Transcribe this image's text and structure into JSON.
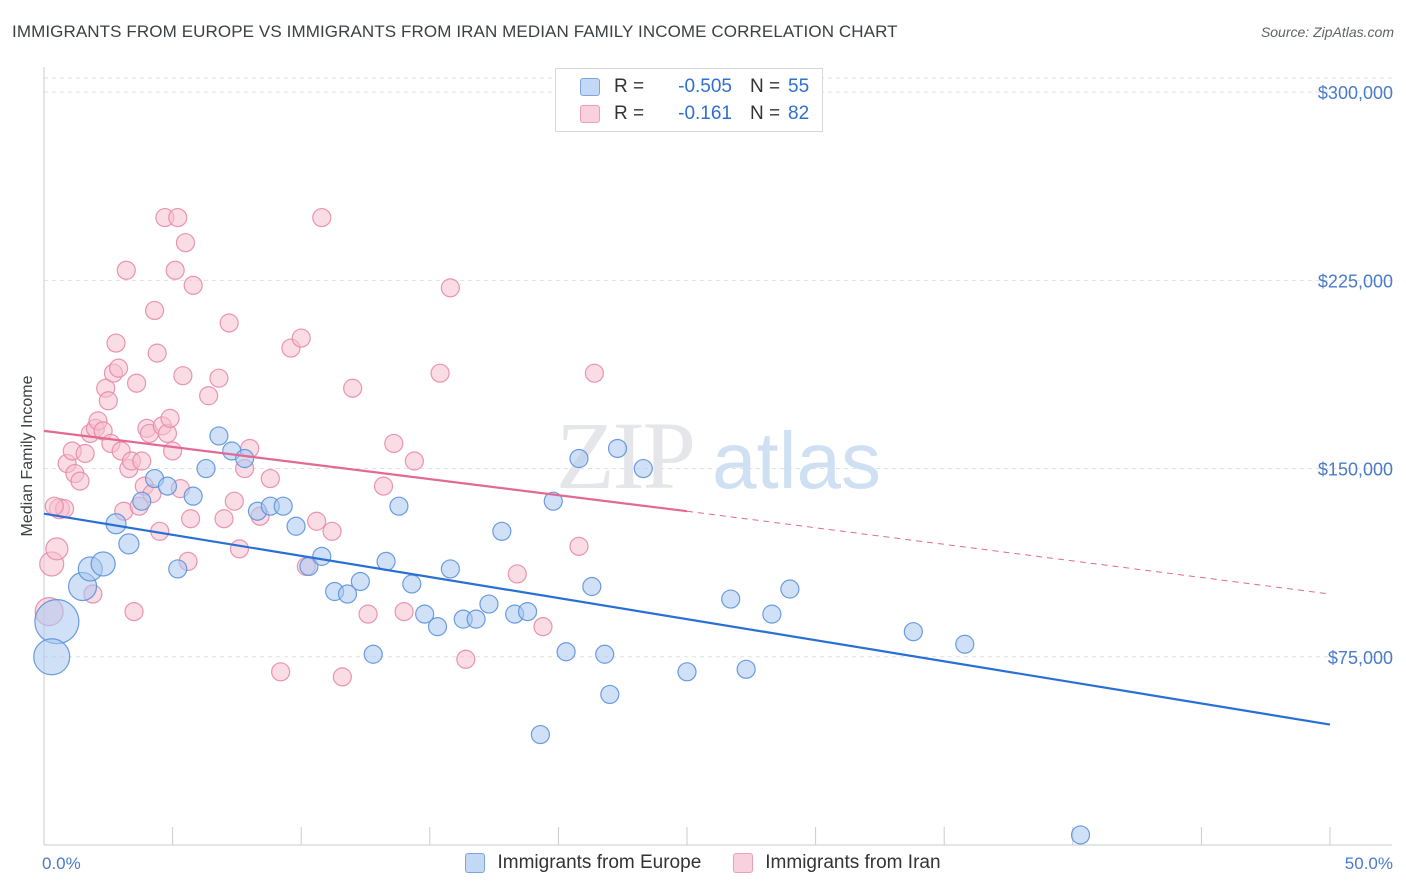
{
  "title": "IMMIGRANTS FROM EUROPE VS IMMIGRANTS FROM IRAN MEDIAN FAMILY INCOME CORRELATION CHART",
  "source": "Source: ZipAtlas.com",
  "watermark": {
    "zip": "ZIP",
    "atlas": "atlas"
  },
  "legend": {
    "europe": {
      "r_label": "R =",
      "r_value": "-0.505",
      "n_label": "N =",
      "n_value": "55"
    },
    "iran": {
      "r_label": "R =",
      "r_value": "-0.161",
      "n_label": "N =",
      "n_value": "82"
    }
  },
  "colors": {
    "europe_fill": "#a9c8f0",
    "europe_stroke": "#5b92dc",
    "europe_line": "#2a6fd4",
    "iran_fill": "#f6bfd0",
    "iran_stroke": "#e889a8",
    "iran_line": "#e26a92",
    "grid": "#dfe1e5",
    "axis_text": "#4a7bc8"
  },
  "chart_data": {
    "type": "scatter",
    "title": "IMMIGRANTS FROM EUROPE VS IMMIGRANTS FROM IRAN MEDIAN FAMILY INCOME CORRELATION CHART",
    "xlabel": "",
    "ylabel": "Median Family Income",
    "xlim": [
      0,
      50
    ],
    "ylim": [
      0,
      310000
    ],
    "x_tick_labels": [
      "0.0%",
      "50.0%"
    ],
    "y_ticks": [
      75000,
      150000,
      225000,
      300000
    ],
    "y_tick_labels": [
      "$75,000",
      "$150,000",
      "$225,000",
      "$300,000"
    ],
    "grid": true,
    "series": [
      {
        "name": "Immigrants from Europe",
        "points": [
          [
            0.5,
            89000,
            22
          ],
          [
            0.3,
            75000,
            18
          ],
          [
            1.5,
            103000,
            14
          ],
          [
            1.8,
            110000,
            12
          ],
          [
            2.3,
            112000,
            12
          ],
          [
            2.8,
            128000,
            10
          ],
          [
            3.3,
            120000,
            10
          ],
          [
            3.8,
            137000,
            9
          ],
          [
            4.3,
            146000,
            9
          ],
          [
            4.8,
            143000,
            9
          ],
          [
            5.2,
            110000,
            9
          ],
          [
            5.8,
            139000,
            9
          ],
          [
            6.3,
            150000,
            9
          ],
          [
            6.8,
            163000,
            9
          ],
          [
            7.3,
            157000,
            9
          ],
          [
            7.8,
            154000,
            9
          ],
          [
            8.3,
            133000,
            9
          ],
          [
            8.8,
            135000,
            9
          ],
          [
            9.3,
            135000,
            9
          ],
          [
            9.8,
            127000,
            9
          ],
          [
            10.3,
            111000,
            9
          ],
          [
            10.8,
            115000,
            9
          ],
          [
            11.3,
            101000,
            9
          ],
          [
            11.8,
            100000,
            9
          ],
          [
            12.3,
            105000,
            9
          ],
          [
            12.8,
            76000,
            9
          ],
          [
            13.3,
            113000,
            9
          ],
          [
            13.8,
            135000,
            9
          ],
          [
            14.3,
            104000,
            9
          ],
          [
            14.8,
            92000,
            9
          ],
          [
            15.3,
            87000,
            9
          ],
          [
            15.8,
            110000,
            9
          ],
          [
            16.3,
            90000,
            9
          ],
          [
            16.8,
            90000,
            9
          ],
          [
            17.3,
            96000,
            9
          ],
          [
            17.8,
            125000,
            9
          ],
          [
            18.3,
            92000,
            9
          ],
          [
            18.8,
            93000,
            9
          ],
          [
            19.3,
            44000,
            9
          ],
          [
            19.8,
            137000,
            9
          ],
          [
            20.3,
            77000,
            9
          ],
          [
            20.8,
            154000,
            9
          ],
          [
            21.3,
            103000,
            9
          ],
          [
            21.8,
            76000,
            9
          ],
          [
            22.0,
            60000,
            9
          ],
          [
            22.3,
            158000,
            9
          ],
          [
            23.3,
            150000,
            9
          ],
          [
            25.0,
            69000,
            9
          ],
          [
            26.7,
            98000,
            9
          ],
          [
            27.3,
            70000,
            9
          ],
          [
            28.3,
            92000,
            9
          ],
          [
            29.0,
            102000,
            9
          ],
          [
            33.8,
            85000,
            9
          ],
          [
            35.8,
            80000,
            9
          ],
          [
            40.3,
            4000,
            9
          ]
        ]
      },
      {
        "name": "Immigrants from Iran",
        "points": [
          [
            0.2,
            93000,
            14
          ],
          [
            0.3,
            112000,
            12
          ],
          [
            0.5,
            118000,
            11
          ],
          [
            0.6,
            134000,
            10
          ],
          [
            0.8,
            134000,
            9
          ],
          [
            0.9,
            152000,
            9
          ],
          [
            1.1,
            157000,
            9
          ],
          [
            1.2,
            148000,
            9
          ],
          [
            1.4,
            145000,
            9
          ],
          [
            1.6,
            156000,
            9
          ],
          [
            1.8,
            164000,
            9
          ],
          [
            1.9,
            100000,
            9
          ],
          [
            2.0,
            166000,
            9
          ],
          [
            2.1,
            169000,
            9
          ],
          [
            2.3,
            165000,
            9
          ],
          [
            2.4,
            182000,
            9
          ],
          [
            2.5,
            177000,
            9
          ],
          [
            2.6,
            160000,
            9
          ],
          [
            2.7,
            188000,
            9
          ],
          [
            2.8,
            200000,
            9
          ],
          [
            2.9,
            190000,
            9
          ],
          [
            3.0,
            157000,
            9
          ],
          [
            3.1,
            133000,
            9
          ],
          [
            3.2,
            229000,
            9
          ],
          [
            3.3,
            150000,
            9
          ],
          [
            3.4,
            153000,
            9
          ],
          [
            3.5,
            93000,
            9
          ],
          [
            3.6,
            184000,
            9
          ],
          [
            3.7,
            135000,
            9
          ],
          [
            3.8,
            153000,
            9
          ],
          [
            3.9,
            143000,
            9
          ],
          [
            4.0,
            166000,
            9
          ],
          [
            4.1,
            164000,
            9
          ],
          [
            4.2,
            140000,
            9
          ],
          [
            4.3,
            213000,
            9
          ],
          [
            4.4,
            196000,
            9
          ],
          [
            4.5,
            125000,
            9
          ],
          [
            4.6,
            167000,
            9
          ],
          [
            4.7,
            250000,
            9
          ],
          [
            4.8,
            164000,
            9
          ],
          [
            4.9,
            170000,
            9
          ],
          [
            5.0,
            157000,
            9
          ],
          [
            5.1,
            229000,
            9
          ],
          [
            5.2,
            250000,
            9
          ],
          [
            5.3,
            142000,
            9
          ],
          [
            5.4,
            187000,
            9
          ],
          [
            5.5,
            240000,
            9
          ],
          [
            5.6,
            113000,
            9
          ],
          [
            5.7,
            130000,
            9
          ],
          [
            5.8,
            223000,
            9
          ],
          [
            6.4,
            179000,
            9
          ],
          [
            6.8,
            186000,
            9
          ],
          [
            7.0,
            130000,
            9
          ],
          [
            7.2,
            208000,
            9
          ],
          [
            7.4,
            137000,
            9
          ],
          [
            7.6,
            118000,
            9
          ],
          [
            7.8,
            150000,
            9
          ],
          [
            8.0,
            158000,
            9
          ],
          [
            8.4,
            131000,
            9
          ],
          [
            8.8,
            146000,
            9
          ],
          [
            9.2,
            69000,
            9
          ],
          [
            9.6,
            198000,
            9
          ],
          [
            10.0,
            202000,
            9
          ],
          [
            10.2,
            111000,
            9
          ],
          [
            10.6,
            129000,
            9
          ],
          [
            10.8,
            250000,
            9
          ],
          [
            11.2,
            125000,
            9
          ],
          [
            11.6,
            67000,
            9
          ],
          [
            12.0,
            182000,
            9
          ],
          [
            12.6,
            92000,
            9
          ],
          [
            13.2,
            143000,
            9
          ],
          [
            13.6,
            160000,
            9
          ],
          [
            14.0,
            93000,
            9
          ],
          [
            14.4,
            153000,
            9
          ],
          [
            15.4,
            188000,
            9
          ],
          [
            15.8,
            222000,
            9
          ],
          [
            16.4,
            74000,
            9
          ],
          [
            18.4,
            108000,
            9
          ],
          [
            19.4,
            87000,
            9
          ],
          [
            20.8,
            119000,
            9
          ],
          [
            21.4,
            188000,
            9
          ],
          [
            0.4,
            135000,
            9
          ]
        ]
      }
    ],
    "trendlines": [
      {
        "series": "Immigrants from Europe",
        "x": [
          0,
          50
        ],
        "y": [
          132000,
          48000
        ],
        "style": "solid"
      },
      {
        "series": "Immigrants from Iran",
        "x": [
          0,
          25
        ],
        "y": [
          165000,
          133000
        ],
        "style": "solid"
      },
      {
        "series": "Immigrants from Iran",
        "x": [
          25,
          50
        ],
        "y": [
          133000,
          100000
        ],
        "style": "dashed"
      }
    ]
  }
}
